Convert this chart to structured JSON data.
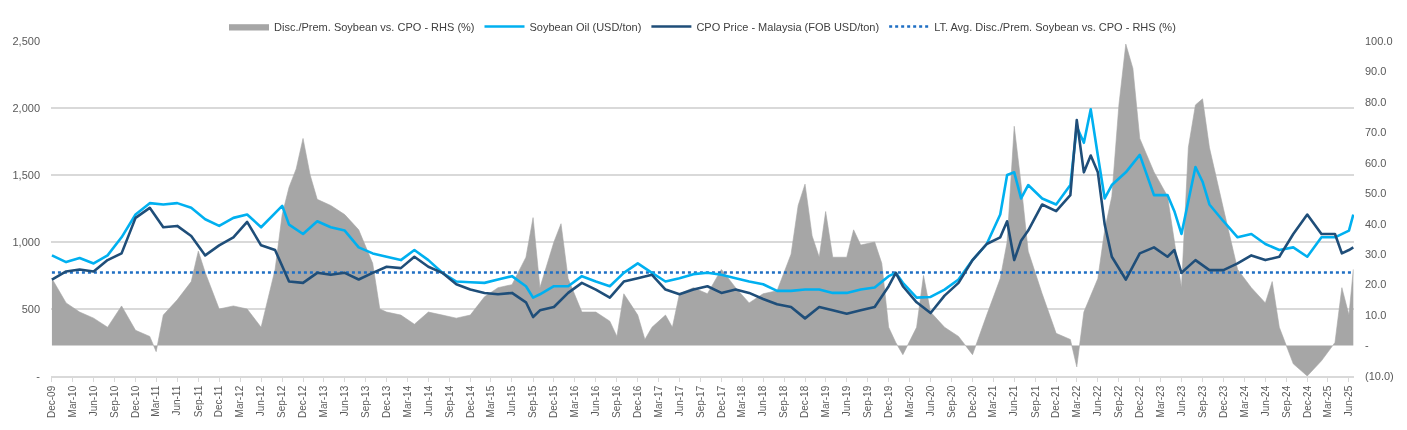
{
  "chart_data": {
    "type": "line",
    "legend": "top",
    "grid": "y",
    "xlim": [
      "2009-11-27",
      "2025-06-23"
    ],
    "xticks": [
      {
        "value": "2009-12",
        "label": "Dec-09"
      },
      {
        "value": "2010-03",
        "label": "Mar-10"
      },
      {
        "value": "2010-06",
        "label": "Jun-10"
      },
      {
        "value": "2010-09",
        "label": "Sep-10"
      },
      {
        "value": "2010-12",
        "label": "Dec-10"
      },
      {
        "value": "2011-03",
        "label": "Mar-11"
      },
      {
        "value": "2011-06",
        "label": "Jun-11"
      },
      {
        "value": "2011-09",
        "label": "Sep-11"
      },
      {
        "value": "2011-12",
        "label": "Dec-11"
      },
      {
        "value": "2012-03",
        "label": "Mar-12"
      },
      {
        "value": "2012-06",
        "label": "Jun-12"
      },
      {
        "value": "2012-09",
        "label": "Sep-12"
      },
      {
        "value": "2012-12",
        "label": "Dec-12"
      },
      {
        "value": "2013-03",
        "label": "Mar-13"
      },
      {
        "value": "2013-06",
        "label": "Jun-13"
      },
      {
        "value": "2013-09",
        "label": "Sep-13"
      },
      {
        "value": "2013-12",
        "label": "Dec-13"
      },
      {
        "value": "2014-03",
        "label": "Mar-14"
      },
      {
        "value": "2014-06",
        "label": "Jun-14"
      },
      {
        "value": "2014-09",
        "label": "Sep-14"
      },
      {
        "value": "2014-12",
        "label": "Dec-14"
      },
      {
        "value": "2015-03",
        "label": "Mar-15"
      },
      {
        "value": "2015-06",
        "label": "Jun-15"
      },
      {
        "value": "2015-09",
        "label": "Sep-15"
      },
      {
        "value": "2015-12",
        "label": "Dec-15"
      },
      {
        "value": "2016-03",
        "label": "Mar-16"
      },
      {
        "value": "2016-06",
        "label": "Jun-16"
      },
      {
        "value": "2016-09",
        "label": "Sep-16"
      },
      {
        "value": "2016-12",
        "label": "Dec-16"
      },
      {
        "value": "2017-03",
        "label": "Mar-17"
      },
      {
        "value": "2017-06",
        "label": "Jun-17"
      },
      {
        "value": "2017-09",
        "label": "Sep-17"
      },
      {
        "value": "2017-12",
        "label": "Dec-17"
      },
      {
        "value": "2018-03",
        "label": "Mar-18"
      },
      {
        "value": "2018-06",
        "label": "Jun-18"
      },
      {
        "value": "2018-09",
        "label": "Sep-18"
      },
      {
        "value": "2018-12",
        "label": "Dec-18"
      },
      {
        "value": "2019-03",
        "label": "Mar-19"
      },
      {
        "value": "2019-06",
        "label": "Jun-19"
      },
      {
        "value": "2019-09",
        "label": "Sep-19"
      },
      {
        "value": "2019-12",
        "label": "Dec-19"
      },
      {
        "value": "2020-03",
        "label": "Mar-20"
      },
      {
        "value": "2020-06",
        "label": "Jun-20"
      },
      {
        "value": "2020-09",
        "label": "Sep-20"
      },
      {
        "value": "2020-12",
        "label": "Dec-20"
      },
      {
        "value": "2021-03",
        "label": "Mar-21"
      },
      {
        "value": "2021-06",
        "label": "Jun-21"
      },
      {
        "value": "2021-09",
        "label": "Sep-21"
      },
      {
        "value": "2021-12",
        "label": "Dec-21"
      },
      {
        "value": "2022-03",
        "label": "Mar-22"
      },
      {
        "value": "2022-06",
        "label": "Jun-22"
      },
      {
        "value": "2022-09",
        "label": "Sep-22"
      },
      {
        "value": "2022-12",
        "label": "Dec-22"
      },
      {
        "value": "2023-03",
        "label": "Mar-23"
      },
      {
        "value": "2023-06",
        "label": "Jun-23"
      },
      {
        "value": "2023-09",
        "label": "Sep-23"
      },
      {
        "value": "2023-12",
        "label": "Dec-23"
      },
      {
        "value": "2024-03",
        "label": "Mar-24"
      },
      {
        "value": "2024-06",
        "label": "Jun-24"
      },
      {
        "value": "2024-09",
        "label": "Sep-24"
      },
      {
        "value": "2024-12",
        "label": "Dec-24"
      },
      {
        "value": "2025-03",
        "label": "Mar-25"
      },
      {
        "value": "2025-06",
        "label": "Jun-25"
      }
    ],
    "ylim": [
      0,
      2500
    ],
    "yticks": [
      {
        "value": 0,
        "label": "-"
      },
      500,
      {
        "value": 1000,
        "label": "1,000"
      },
      {
        "value": 1500,
        "label": "1,500"
      },
      {
        "value": 2000,
        "label": "2,000"
      },
      {
        "value": 2500,
        "label": "2,500"
      }
    ],
    "y2lim": [
      -10,
      100
    ],
    "y2ticks": [
      {
        "value": -10,
        "label": "(10.0)"
      },
      {
        "value": 0,
        "label": "-"
      },
      {
        "value": 10,
        "label": "10.0"
      },
      {
        "value": 20,
        "label": "20.0"
      },
      {
        "value": 30,
        "label": "30.0"
      },
      {
        "value": 40,
        "label": "40.0"
      },
      {
        "value": 50,
        "label": "50.0"
      },
      {
        "value": 60,
        "label": "60.0"
      },
      {
        "value": 70,
        "label": "70.0"
      },
      {
        "value": 80,
        "label": "80.0"
      },
      {
        "value": 90,
        "label": "90.0"
      },
      {
        "value": 100,
        "label": "100.0"
      }
    ],
    "series": [
      {
        "name": "Disc./Prem. Soybean vs. CPO - RHS (%)",
        "type": "area",
        "axis": "y2",
        "color": "#a6a6a6",
        "x": [
          "2009-12",
          "2010-02",
          "2010-04",
          "2010-06",
          "2010-08",
          "2010-10",
          "2010-12",
          "2011-02",
          "2011-03",
          "2011-04",
          "2011-06",
          "2011-08",
          "2011-09",
          "2011-10",
          "2011-12",
          "2012-02",
          "2012-04",
          "2012-06",
          "2012-08",
          "2012-09",
          "2012-10",
          "2012-11",
          "2012-12",
          "2013-01",
          "2013-02",
          "2013-04",
          "2013-06",
          "2013-08",
          "2013-10",
          "2013-11",
          "2013-12",
          "2014-02",
          "2014-04",
          "2014-06",
          "2014-08",
          "2014-10",
          "2014-12",
          "2015-02",
          "2015-04",
          "2015-06",
          "2015-08",
          "2015-09",
          "2015-10",
          "2015-12",
          "2016-01",
          "2016-02",
          "2016-04",
          "2016-06",
          "2016-08",
          "2016-09",
          "2016-10",
          "2016-12",
          "2017-01",
          "2017-02",
          "2017-04",
          "2017-05",
          "2017-06",
          "2017-08",
          "2017-10",
          "2017-12",
          "2018-02",
          "2018-04",
          "2018-06",
          "2018-08",
          "2018-10",
          "2018-11",
          "2018-12",
          "2019-01",
          "2019-02",
          "2019-03",
          "2019-04",
          "2019-06",
          "2019-07",
          "2019-08",
          "2019-10",
          "2019-11",
          "2019-12",
          "2020-01",
          "2020-02",
          "2020-04",
          "2020-05",
          "2020-06",
          "2020-08",
          "2020-10",
          "2020-12",
          "2021-02",
          "2021-04",
          "2021-05",
          "2021-06",
          "2021-07",
          "2021-08",
          "2021-10",
          "2021-12",
          "2022-02",
          "2022-03",
          "2022-04",
          "2022-06",
          "2022-07",
          "2022-08",
          "2022-09",
          "2022-10",
          "2022-11",
          "2022-12",
          "2023-02",
          "2023-04",
          "2023-06",
          "2023-07",
          "2023-08",
          "2023-09",
          "2023-10",
          "2023-12",
          "2024-02",
          "2024-04",
          "2024-06",
          "2024-07",
          "2024-08",
          "2024-10",
          "2024-12",
          "2025-02",
          "2025-04",
          "2025-05",
          "2025-06",
          "2025-06-20"
        ],
        "values": [
          22,
          14,
          11,
          9,
          6,
          13,
          5,
          3,
          -2,
          10,
          15,
          21,
          31,
          24,
          12,
          13,
          12,
          6,
          25,
          43,
          52,
          58,
          68,
          56,
          48,
          46,
          43,
          38,
          27,
          12,
          11,
          10,
          7,
          11,
          10,
          9,
          10,
          16,
          19,
          20,
          29,
          42,
          19,
          34,
          40,
          22,
          11,
          11,
          8,
          3,
          17,
          10,
          2,
          6,
          10,
          6,
          17,
          19,
          17,
          25,
          19,
          14,
          17,
          18,
          30,
          46,
          53,
          36,
          29,
          44,
          29,
          29,
          38,
          33,
          34,
          27,
          6,
          1,
          -3,
          6,
          23,
          11,
          6,
          3,
          -3,
          10,
          22,
          34,
          72,
          53,
          31,
          17,
          4,
          2,
          -7,
          11,
          22,
          38,
          49,
          79,
          99,
          91,
          68,
          57,
          49,
          19,
          65,
          79,
          81,
          65,
          45,
          25,
          19,
          14,
          21,
          6,
          -6,
          -10,
          -5,
          1,
          19,
          10,
          25
        ]
      },
      {
        "name": "Soybean Oil (USD/ton)",
        "color": "#00b0f0",
        "x": [
          "2009-12",
          "2010-02",
          "2010-04",
          "2010-06",
          "2010-08",
          "2010-10",
          "2010-12",
          "2011-02",
          "2011-04",
          "2011-06",
          "2011-08",
          "2011-10",
          "2011-12",
          "2012-02",
          "2012-04",
          "2012-06",
          "2012-09",
          "2012-10",
          "2012-12",
          "2013-02",
          "2013-04",
          "2013-06",
          "2013-08",
          "2013-10",
          "2013-12",
          "2014-02",
          "2014-04",
          "2014-06",
          "2014-08",
          "2014-10",
          "2014-12",
          "2015-02",
          "2015-04",
          "2015-06",
          "2015-08",
          "2015-09",
          "2015-10",
          "2015-12",
          "2016-02",
          "2016-04",
          "2016-06",
          "2016-08",
          "2016-10",
          "2016-12",
          "2017-02",
          "2017-04",
          "2017-06",
          "2017-08",
          "2017-10",
          "2017-12",
          "2018-02",
          "2018-04",
          "2018-06",
          "2018-08",
          "2018-10",
          "2018-12",
          "2019-02",
          "2019-04",
          "2019-06",
          "2019-08",
          "2019-10",
          "2019-12",
          "2020-01",
          "2020-02",
          "2020-04",
          "2020-06",
          "2020-08",
          "2020-10",
          "2020-12",
          "2021-02",
          "2021-04",
          "2021-05",
          "2021-06",
          "2021-07",
          "2021-08",
          "2021-10",
          "2021-12",
          "2022-02",
          "2022-03",
          "2022-04",
          "2022-05",
          "2022-06",
          "2022-07",
          "2022-08",
          "2022-10",
          "2022-12",
          "2023-02",
          "2023-04",
          "2023-05",
          "2023-06",
          "2023-08",
          "2023-09",
          "2023-10",
          "2023-12",
          "2024-02",
          "2024-04",
          "2024-06",
          "2024-08",
          "2024-10",
          "2024-12",
          "2025-02",
          "2025-04",
          "2025-06",
          "2025-06-20"
        ],
        "values": [
          900,
          850,
          880,
          840,
          900,
          1035,
          1205,
          1290,
          1280,
          1290,
          1255,
          1170,
          1120,
          1180,
          1205,
          1110,
          1270,
          1130,
          1060,
          1155,
          1110,
          1085,
          960,
          915,
          890,
          865,
          940,
          865,
          770,
          705,
          700,
          695,
          720,
          745,
          670,
          585,
          610,
          670,
          670,
          745,
          705,
          670,
          770,
          840,
          770,
          705,
          730,
          760,
          770,
          755,
          730,
          705,
          685,
          635,
          635,
          645,
          645,
          620,
          620,
          645,
          660,
          745,
          770,
          695,
          585,
          590,
          645,
          720,
          865,
          985,
          1205,
          1500,
          1520,
          1325,
          1425,
          1325,
          1280,
          1425,
          1860,
          1740,
          1990,
          1645,
          1325,
          1425,
          1520,
          1650,
          1350,
          1350,
          1230,
          1060,
          1560,
          1450,
          1280,
          1155,
          1035,
          1060,
          985,
          940,
          960,
          890,
          1035,
          1035,
          1085,
          1205
        ]
      },
      {
        "name": "CPO Price - Malaysia (FOB USD/ton)",
        "color": "#1f4e79",
        "x": [
          "2009-12",
          "2010-02",
          "2010-04",
          "2010-06",
          "2010-08",
          "2010-10",
          "2010-12",
          "2011-02",
          "2011-04",
          "2011-06",
          "2011-08",
          "2011-10",
          "2011-12",
          "2012-02",
          "2012-04",
          "2012-06",
          "2012-08",
          "2012-10",
          "2012-12",
          "2013-02",
          "2013-04",
          "2013-06",
          "2013-08",
          "2013-10",
          "2013-12",
          "2014-02",
          "2014-04",
          "2014-06",
          "2014-08",
          "2014-10",
          "2014-12",
          "2015-02",
          "2015-04",
          "2015-06",
          "2015-08",
          "2015-09",
          "2015-10",
          "2015-12",
          "2016-02",
          "2016-04",
          "2016-06",
          "2016-08",
          "2016-10",
          "2016-12",
          "2017-02",
          "2017-04",
          "2017-06",
          "2017-08",
          "2017-10",
          "2017-12",
          "2018-02",
          "2018-04",
          "2018-06",
          "2018-08",
          "2018-10",
          "2018-12",
          "2019-02",
          "2019-04",
          "2019-06",
          "2019-08",
          "2019-10",
          "2019-12",
          "2020-01",
          "2020-02",
          "2020-04",
          "2020-06",
          "2020-08",
          "2020-10",
          "2020-12",
          "2021-02",
          "2021-04",
          "2021-05",
          "2021-06",
          "2021-07",
          "2021-08",
          "2021-10",
          "2021-12",
          "2022-02",
          "2022-03",
          "2022-04",
          "2022-05",
          "2022-06",
          "2022-07",
          "2022-08",
          "2022-10",
          "2022-12",
          "2023-02",
          "2023-04",
          "2023-05",
          "2023-06",
          "2023-08",
          "2023-10",
          "2023-12",
          "2024-02",
          "2024-04",
          "2024-06",
          "2024-08",
          "2024-10",
          "2024-12",
          "2025-02",
          "2025-04",
          "2025-05",
          "2025-06",
          "2025-06-20"
        ],
        "values": [
          720,
          780,
          795,
          780,
          865,
          915,
          1180,
          1255,
          1110,
          1120,
          1045,
          900,
          975,
          1035,
          1150,
          975,
          940,
          705,
          695,
          770,
          755,
          770,
          720,
          770,
          815,
          805,
          890,
          815,
          770,
          685,
          645,
          620,
          610,
          620,
          550,
          440,
          490,
          515,
          620,
          695,
          645,
          585,
          705,
          730,
          755,
          645,
          610,
          645,
          670,
          620,
          645,
          620,
          575,
          535,
          515,
          430,
          515,
          490,
          465,
          490,
          515,
          670,
          770,
          670,
          550,
          470,
          600,
          695,
          865,
          985,
          1035,
          1155,
          865,
          1010,
          1085,
          1280,
          1230,
          1350,
          1910,
          1520,
          1645,
          1520,
          1130,
          890,
          720,
          915,
          960,
          890,
          940,
          770,
          865,
          790,
          790,
          840,
          900,
          865,
          890,
          1060,
          1205,
          1060,
          1060,
          915,
          940,
          960
        ]
      },
      {
        "name": "LT. Avg. Disc./Prem. Soybean vs. CPO - RHS (%)",
        "axis": "y2",
        "line_style": "dotted",
        "color": "#1f6fc4",
        "x": [
          "2009-12",
          "2010-12",
          "2011-12",
          "2012-12",
          "2013-12",
          "2014-12",
          "2015-12",
          "2016-12",
          "2017-12",
          "2018-12",
          "2019-12",
          "2020-12",
          "2021-12",
          "2022-12",
          "2023-12",
          "2024-12",
          "2025-06-20"
        ],
        "values": [
          24,
          24,
          24,
          24,
          24,
          24,
          24,
          24,
          24,
          24,
          24,
          24,
          24,
          24,
          24,
          24,
          24
        ]
      }
    ]
  }
}
